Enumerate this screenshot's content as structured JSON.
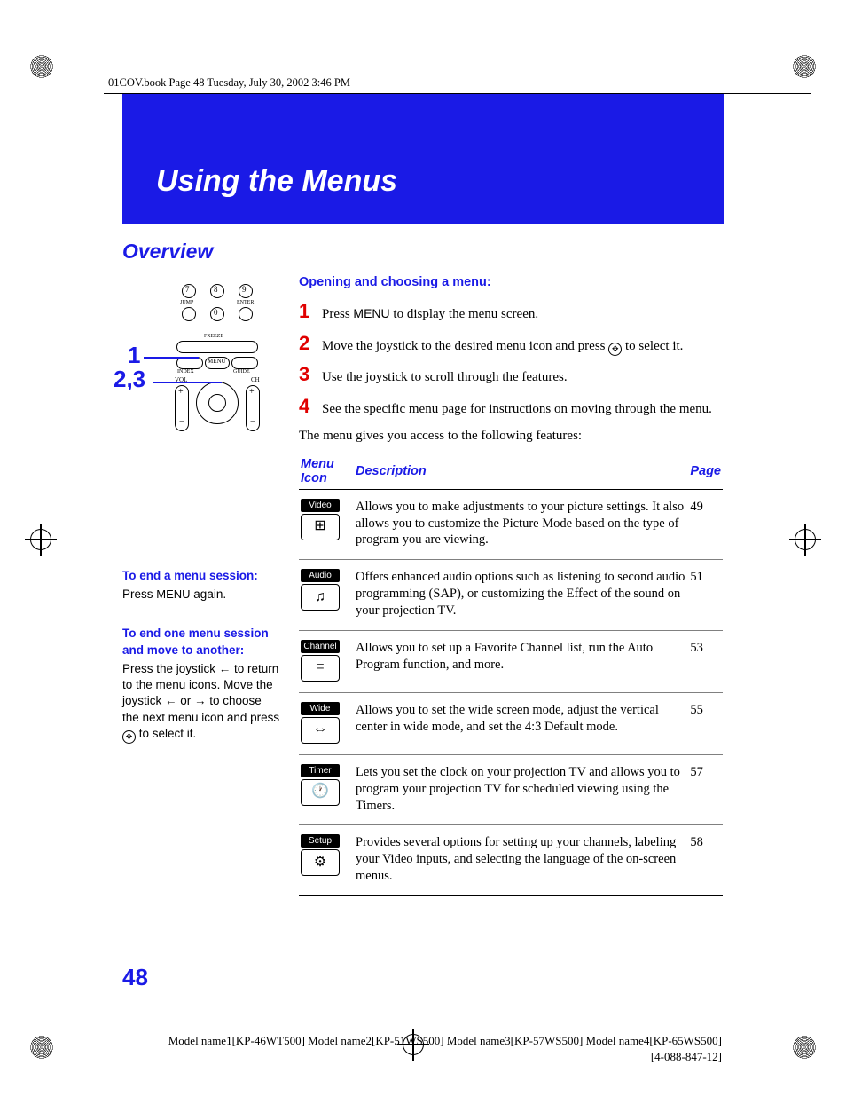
{
  "header_crop": "01COV.book  Page 48  Tuesday, July 30, 2002  3:46 PM",
  "banner_title": "Using the Menus",
  "overview": "Overview",
  "callouts": {
    "c1": "1",
    "c23": "2,3"
  },
  "opening_heading": "Opening and choosing a menu:",
  "steps": [
    {
      "num": "1",
      "pre": "Press ",
      "menu": "MENU",
      "post": " to display the menu screen."
    },
    {
      "num": "2",
      "pre": "Move the joystick to the desired menu icon and press ",
      "icon": true,
      "post": " to select it."
    },
    {
      "num": "3",
      "pre": "Use the joystick to scroll through the features.",
      "menu": "",
      "post": ""
    },
    {
      "num": "4",
      "pre": "See the specific menu page for instructions on moving through the menu.",
      "menu": "",
      "post": ""
    }
  ],
  "intro_line": "The menu gives you access to the following features:",
  "table_headers": {
    "icon": "Menu Icon",
    "desc": "Description",
    "page": "Page"
  },
  "menu_rows": [
    {
      "label": "Video",
      "glyph": "⊞",
      "desc": "Allows you to make adjustments to your picture settings. It also allows you to customize the Picture Mode based on the type of program you are viewing.",
      "page": "49"
    },
    {
      "label": "Audio",
      "glyph": "♫",
      "desc": "Offers enhanced audio options such as listening to second audio programming (SAP), or customizing the Effect of the sound on your projection TV.",
      "page": "51"
    },
    {
      "label": "Channel",
      "glyph": "≡",
      "desc": "Allows you to set up a Favorite Channel list, run the Auto Program function, and more.",
      "page": "53"
    },
    {
      "label": "Wide",
      "glyph": "⇔",
      "desc": "Allows you to set the wide screen mode, adjust the vertical center in wide mode, and set the 4:3 Default mode.",
      "page": "55"
    },
    {
      "label": "Timer",
      "glyph": "🕐",
      "desc": "Lets you set the clock on your projection TV and allows you to program your projection TV for scheduled viewing using the Timers.",
      "page": "57"
    },
    {
      "label": "Setup",
      "glyph": "⚙",
      "desc": "Provides several options for  setting up your channels, labeling your Video inputs, and selecting the language of the on-screen menus.",
      "page": "58"
    }
  ],
  "sidebar": {
    "s1_title": "To end a menu session:",
    "s1_body_pre": "Press ",
    "s1_menu": "MENU",
    "s1_body_post": " again.",
    "s2_title": "To end one menu session and move to another:",
    "s2_body": "Press the joystick ← to return to the menu icons. Move the joystick ← or → to choose the next menu icon and press ",
    "s2_body_post": " to select it."
  },
  "page_number": "48",
  "footer_line1": "Model name1[KP-46WT500] Model name2[KP-51WS500] Model name3[KP-57WS500] Model name4[KP-65WS500]",
  "footer_line2": "[4-088-847-12]",
  "colors": {
    "blue": "#1a1ae6",
    "red": "#e00000"
  }
}
